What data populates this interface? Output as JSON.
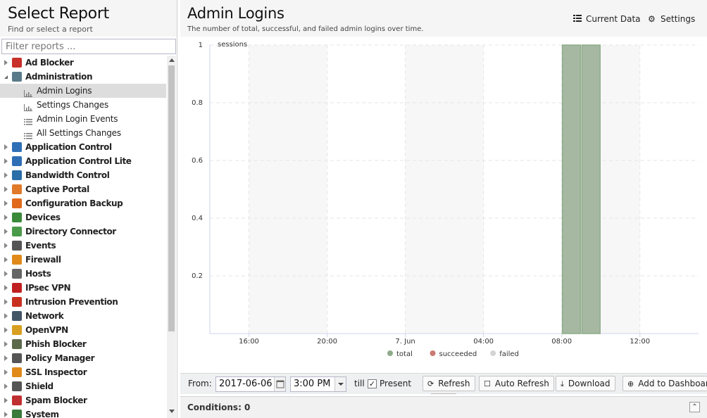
{
  "sidebar": {
    "title": "Select Report",
    "subtitle": "Find or select a report",
    "filter_placeholder": "Filter reports ...",
    "items": [
      {
        "label": "Ad Blocker",
        "color": "#c8302a",
        "icon": "ad-blocker-icon",
        "expanded": false
      },
      {
        "label": "Administration",
        "color": "#5a7a8a",
        "icon": "administration-icon",
        "expanded": true,
        "children": [
          {
            "label": "Admin Logins",
            "icon": "bar-chart-icon",
            "selected": true
          },
          {
            "label": "Settings Changes",
            "icon": "bar-chart-icon"
          },
          {
            "label": "Admin Login Events",
            "icon": "list-icon"
          },
          {
            "label": "All Settings Changes",
            "icon": "list-icon"
          }
        ]
      },
      {
        "label": "Application Control",
        "color": "#2f6fb5",
        "icon": "application-control-icon"
      },
      {
        "label": "Application Control Lite",
        "color": "#2f6fb5",
        "icon": "application-control-lite-icon"
      },
      {
        "label": "Bandwidth Control",
        "color": "#2a6ea8",
        "icon": "bandwidth-control-icon"
      },
      {
        "label": "Captive Portal",
        "color": "#e07a2a",
        "icon": "captive-portal-icon"
      },
      {
        "label": "Configuration Backup",
        "color": "#e06a1a",
        "icon": "configuration-backup-icon"
      },
      {
        "label": "Devices",
        "color": "#3a8a3a",
        "icon": "devices-icon"
      },
      {
        "label": "Directory Connector",
        "color": "#4a9a4a",
        "icon": "directory-connector-icon"
      },
      {
        "label": "Events",
        "color": "#555555",
        "icon": "events-icon"
      },
      {
        "label": "Firewall",
        "color": "#e08a1a",
        "icon": "firewall-icon"
      },
      {
        "label": "Hosts",
        "color": "#666666",
        "icon": "hosts-icon"
      },
      {
        "label": "IPsec VPN",
        "color": "#c02020",
        "icon": "ipsec-vpn-icon"
      },
      {
        "label": "Intrusion Prevention",
        "color": "#c83020",
        "icon": "intrusion-prevention-icon"
      },
      {
        "label": "Network",
        "color": "#445566",
        "icon": "network-icon"
      },
      {
        "label": "OpenVPN",
        "color": "#d8a020",
        "icon": "openvpn-icon"
      },
      {
        "label": "Phish Blocker",
        "color": "#5a6a4a",
        "icon": "phish-blocker-icon"
      },
      {
        "label": "Policy Manager",
        "color": "#555555",
        "icon": "policy-manager-icon"
      },
      {
        "label": "SSL Inspector",
        "color": "#e08a1a",
        "icon": "ssl-inspector-icon"
      },
      {
        "label": "Shield",
        "color": "#555555",
        "icon": "shield-icon"
      },
      {
        "label": "Spam Blocker",
        "color": "#c03030",
        "icon": "spam-blocker-icon"
      },
      {
        "label": "System",
        "color": "#3a7a3a",
        "icon": "system-icon"
      }
    ]
  },
  "header": {
    "title": "Admin Logins",
    "subtitle": "The number of total, successful, and failed admin logins over time.",
    "current_data_label": "Current Data",
    "settings_label": "Settings"
  },
  "chart_data": {
    "type": "bar",
    "ylabel": "sessions",
    "ylim": [
      0,
      1
    ],
    "yticks": [
      "0.2",
      "0.4",
      "0.6",
      "0.8",
      "1"
    ],
    "xticks": [
      "16:00",
      "20:00",
      "7. Jun",
      "04:00",
      "08:00",
      "12:00"
    ],
    "series": [
      {
        "name": "total",
        "color": "#8fac8a",
        "points": [
          {
            "x": "2017-06-07 08:00",
            "y": 1
          },
          {
            "x": "2017-06-07 09:00",
            "y": 1
          }
        ]
      },
      {
        "name": "succeeded",
        "color": "#c97a72",
        "points": []
      },
      {
        "name": "failed",
        "color": "#d4d4d4",
        "points": []
      }
    ],
    "grid": true,
    "legend": "bottom"
  },
  "toolbar": {
    "from_label": "From:",
    "date_value": "2017-06-06",
    "time_value": "3:00 PM",
    "till_label": "till",
    "present_label": "Present",
    "present_checked": true,
    "refresh_label": "Refresh",
    "auto_refresh_label": "Auto Refresh",
    "download_label": "Download",
    "add_dashboard_label": "Add to Dashboar"
  },
  "conditions": {
    "label": "Conditions: 0"
  }
}
